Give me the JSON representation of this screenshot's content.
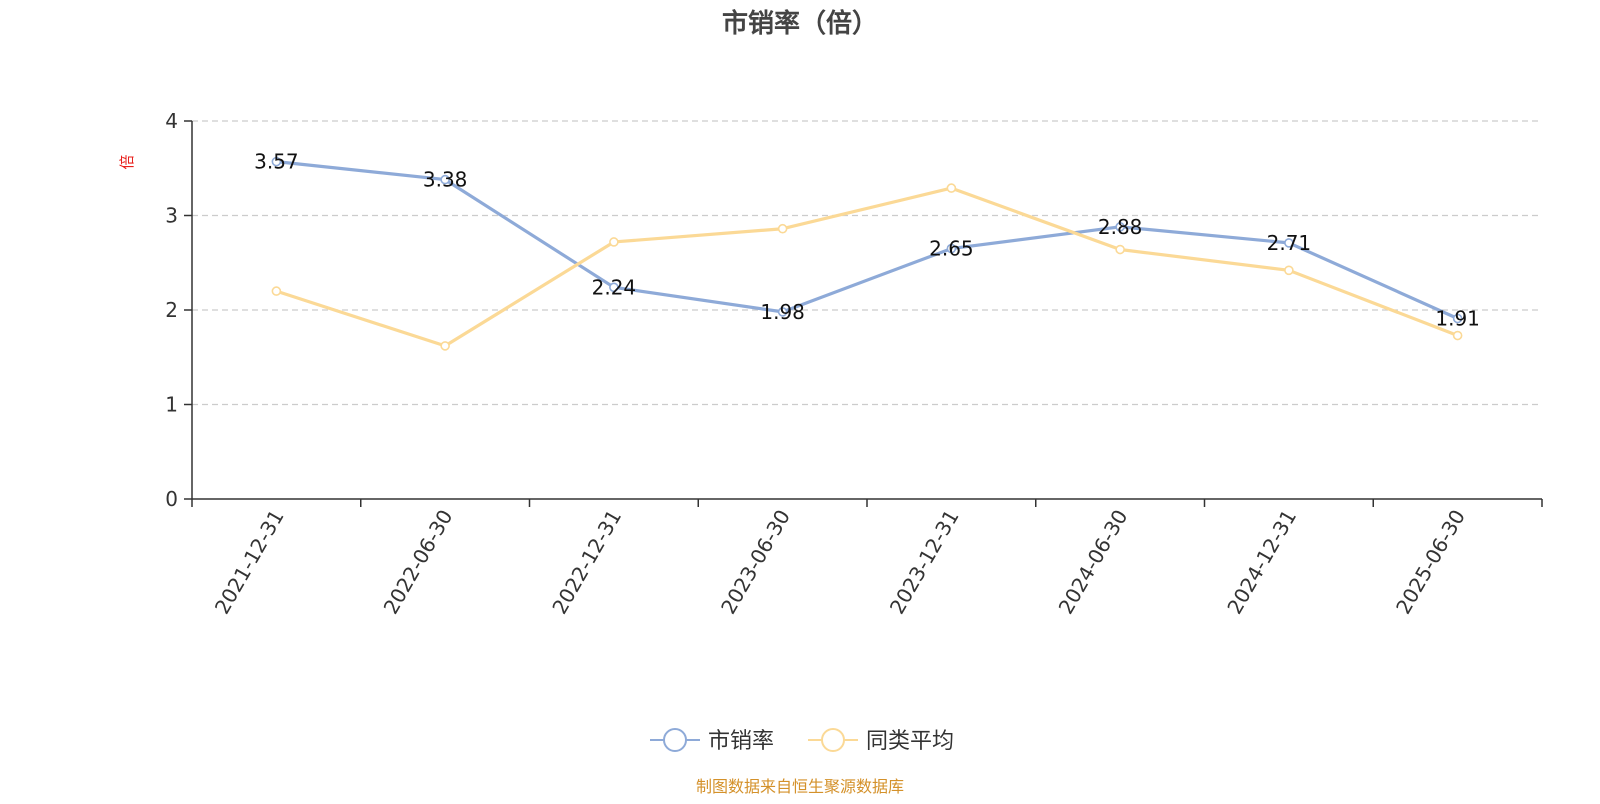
{
  "chart_data": {
    "type": "line",
    "title": "市销率（倍）",
    "ylabel": "倍",
    "xlabel": "",
    "ylim": [
      0,
      4
    ],
    "yticks": [
      0,
      1,
      2,
      3,
      4
    ],
    "grid": "horizontal dashed",
    "categories": [
      "2021-12-31",
      "2022-06-30",
      "2022-12-31",
      "2023-06-30",
      "2023-12-31",
      "2024-06-30",
      "2024-12-31",
      "2025-06-30"
    ],
    "series": [
      {
        "name": "市销率",
        "color": "#8eaad8",
        "values": [
          3.57,
          3.38,
          2.24,
          1.98,
          2.65,
          2.88,
          2.71,
          1.91
        ],
        "labels": [
          "3.57",
          "3.38",
          "2.24",
          "1.98",
          "2.65",
          "2.88",
          "2.71",
          "1.91"
        ]
      },
      {
        "name": "同类平均",
        "color": "#fbd996",
        "values": [
          2.2,
          1.62,
          2.72,
          2.86,
          3.29,
          2.64,
          2.42,
          1.73
        ]
      }
    ],
    "legend_position": "bottom-center"
  },
  "footer": {
    "source": "制图数据来自恒生聚源数据库"
  }
}
